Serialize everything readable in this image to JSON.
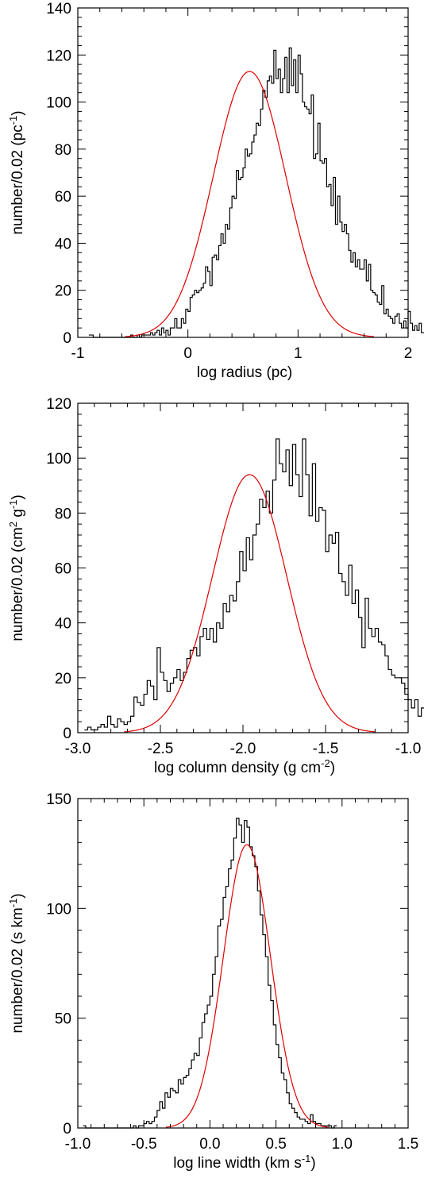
{
  "chart_data": [
    {
      "type": "histogram",
      "id": "radius",
      "xlabel": "log radius (pc)",
      "ylabel": {
        "text": "number/0.02 (pc",
        "sup": "-1",
        "tail": ")"
      },
      "xlim": [
        -1,
        2
      ],
      "ylim": [
        0,
        140
      ],
      "xticks": [
        -1,
        0,
        1,
        2
      ],
      "xtick_labels": [
        "-1",
        "0",
        "1",
        "2"
      ],
      "yticks": [
        0,
        20,
        40,
        60,
        80,
        100,
        120,
        140
      ],
      "ytick_labels": [
        "0",
        "20",
        "40",
        "60",
        "80",
        "100",
        "120",
        "140"
      ],
      "bin_width": 0.02,
      "bin_start": -0.9,
      "counts": [
        1,
        1,
        0,
        0,
        0,
        0,
        0,
        0,
        0,
        0,
        0,
        0,
        0,
        0,
        0,
        0,
        0,
        0,
        0,
        1,
        0,
        0,
        1,
        0,
        1,
        1,
        1,
        1,
        2,
        1,
        2,
        3,
        1,
        4,
        2,
        3,
        1,
        4,
        4,
        8,
        4,
        4,
        8,
        6,
        12,
        11,
        17,
        18,
        20,
        19,
        20,
        21,
        23,
        30,
        28,
        22,
        34,
        35,
        33,
        39,
        44,
        40,
        48,
        46,
        55,
        60,
        59,
        71,
        67,
        68,
        72,
        80,
        77,
        78,
        83,
        86,
        91,
        90,
        97,
        105,
        102,
        109,
        111,
        108,
        122,
        110,
        114,
        104,
        110,
        119,
        104,
        123,
        107,
        118,
        104,
        120,
        112,
        100,
        98,
        97,
        95,
        103,
        76,
        78,
        91,
        75,
        74,
        76,
        64,
        65,
        56,
        68,
        48,
        60,
        49,
        45,
        48,
        44,
        37,
        32,
        36,
        30,
        33,
        29,
        29,
        33,
        24,
        31,
        20,
        19,
        18,
        15,
        14,
        22,
        10,
        12,
        9,
        8,
        6,
        9,
        10,
        6,
        4,
        7,
        4,
        11,
        6,
        3,
        5,
        3,
        6,
        2,
        2,
        4,
        2,
        2,
        2,
        1,
        0,
        1,
        1,
        0,
        2
      ],
      "fit": {
        "amp": 113,
        "mean": 0.56,
        "sigma": 0.33,
        "color": "#e00000"
      },
      "line_color": "#000000"
    },
    {
      "type": "histogram",
      "id": "column-density",
      "xlabel": {
        "text": "log column density (g cm",
        "sup": "-2",
        "tail": ")"
      },
      "ylabel": {
        "text": "number/0.02 (cm",
        "sup": "2",
        "mid": " g",
        "sup2": "-1",
        "tail": ")"
      },
      "xlim": [
        -3.0,
        -1.0
      ],
      "ylim": [
        0,
        120
      ],
      "xticks": [
        -3.0,
        -2.5,
        -2.0,
        -1.5,
        -1.0
      ],
      "xtick_labels": [
        "-3.0",
        "-2.5",
        "-2.0",
        "-1.5",
        "-1.0"
      ],
      "yticks": [
        0,
        20,
        40,
        60,
        80,
        100,
        120
      ],
      "ytick_labels": [
        "0",
        "20",
        "40",
        "60",
        "80",
        "100",
        "120"
      ],
      "bin_width": 0.02,
      "bin_start": -2.96,
      "counts": [
        1,
        2,
        1,
        1,
        2,
        3,
        2,
        6,
        3,
        2,
        5,
        4,
        3,
        4,
        6,
        13,
        11,
        10,
        14,
        19,
        17,
        12,
        31,
        22,
        19,
        15,
        18,
        20,
        23,
        19,
        22,
        27,
        30,
        31,
        28,
        35,
        38,
        34,
        38,
        33,
        40,
        38,
        47,
        44,
        50,
        48,
        55,
        66,
        59,
        71,
        63,
        72,
        76,
        85,
        82,
        88,
        80,
        92,
        107,
        98,
        95,
        103,
        90,
        105,
        94,
        86,
        107,
        94,
        79,
        98,
        77,
        82,
        81,
        66,
        72,
        69,
        73,
        58,
        55,
        50,
        61,
        47,
        52,
        42,
        31,
        49,
        38,
        35,
        38,
        33,
        32,
        28,
        23,
        21,
        20,
        20,
        18,
        14,
        12,
        9,
        12,
        6,
        9,
        3,
        4,
        5,
        2,
        1,
        2,
        2,
        1,
        1,
        0,
        1,
        0
      ],
      "fit": {
        "amp": 94,
        "mean": -1.96,
        "sigma": 0.225,
        "color": "#e00000"
      },
      "line_color": "#000000"
    },
    {
      "type": "histogram",
      "id": "line-width",
      "xlabel": {
        "text": "log line width (km s",
        "sup": "-1",
        "tail": ")"
      },
      "ylabel": {
        "text": "number/0.02 (s km",
        "sup": "-1",
        "tail": ")"
      },
      "xlim": [
        -1.0,
        1.5
      ],
      "ylim": [
        0,
        150
      ],
      "xticks": [
        -1.0,
        -0.5,
        0.0,
        0.5,
        1.0,
        1.5
      ],
      "xtick_labels": [
        "-1.0",
        "-0.5",
        "0.0",
        "0.5",
        "1.0",
        "1.5"
      ],
      "yticks": [
        0,
        50,
        100,
        150
      ],
      "ytick_labels": [
        "0",
        "50",
        "100",
        "150"
      ],
      "bin_width": 0.02,
      "bin_start": -0.96,
      "counts": [
        1,
        0,
        0,
        0,
        0,
        0,
        0,
        0,
        0,
        0,
        0,
        0,
        0,
        0,
        0,
        0,
        0,
        0,
        0,
        1,
        0,
        1,
        1,
        2,
        3,
        2,
        3,
        5,
        8,
        12,
        9,
        16,
        14,
        18,
        17,
        16,
        22,
        20,
        23,
        24,
        27,
        31,
        34,
        33,
        41,
        48,
        52,
        56,
        60,
        70,
        78,
        92,
        95,
        105,
        110,
        118,
        122,
        132,
        141,
        138,
        130,
        140,
        137,
        128,
        124,
        119,
        108,
        97,
        88,
        78,
        65,
        58,
        47,
        38,
        32,
        25,
        22,
        16,
        11,
        9,
        7,
        5,
        4,
        4,
        3,
        2,
        6,
        3,
        2,
        2,
        1,
        1,
        1,
        1,
        0,
        1
      ],
      "fit": {
        "amp": 129,
        "mean": 0.28,
        "sigma": 0.178,
        "color": "#e00000"
      },
      "line_color": "#000000"
    }
  ]
}
